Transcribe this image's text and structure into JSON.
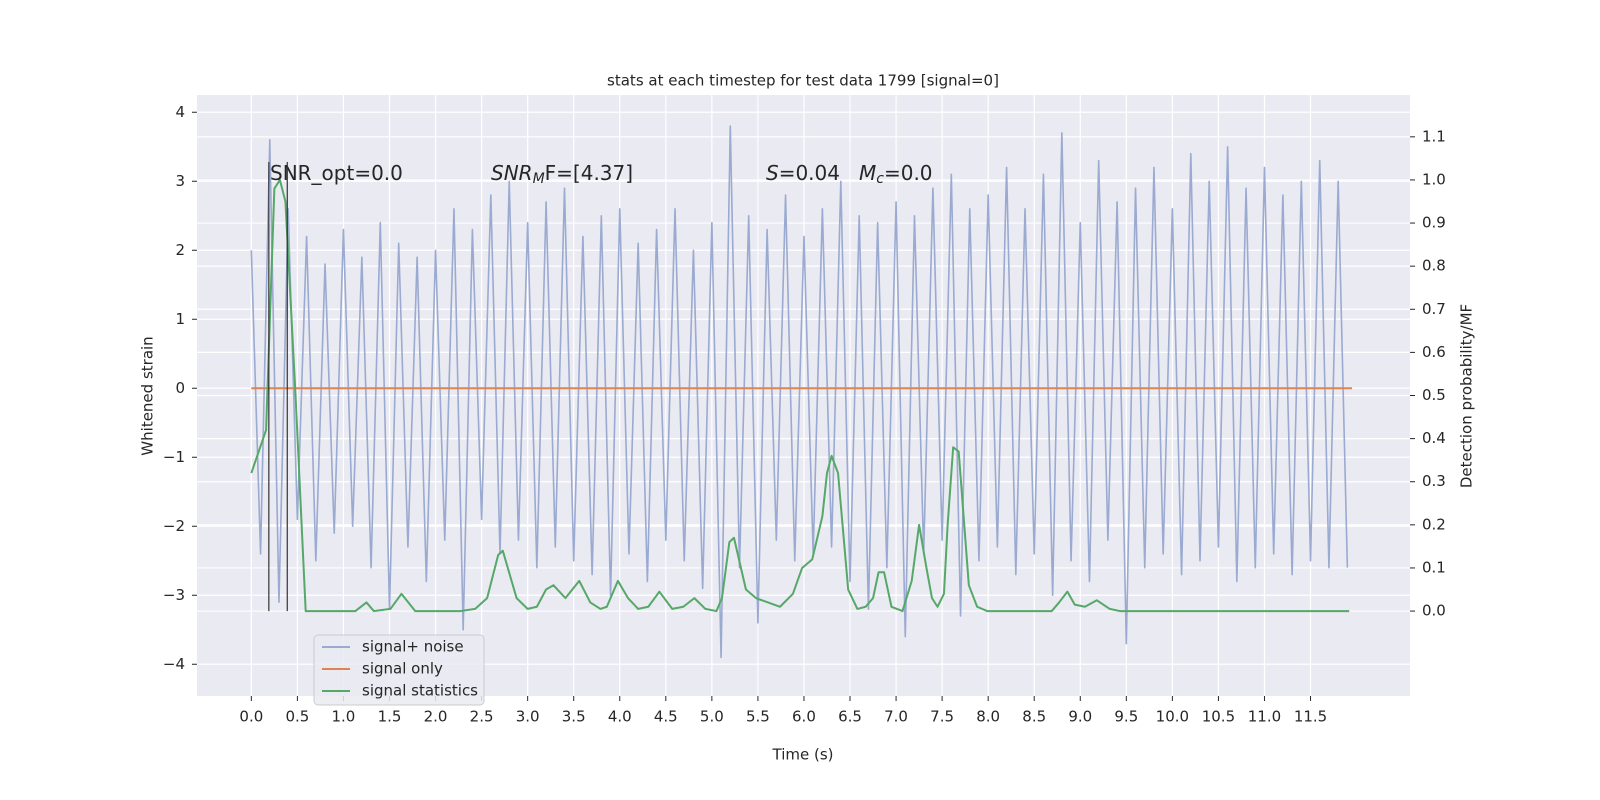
{
  "chart_data": {
    "type": "line",
    "title": "stats at each timestep for test data 1799 [signal=0]",
    "xlabel": "Time (s)",
    "ylabel": "Whitened strain",
    "y2label": "Detection probability/MF",
    "xlim": [
      -0.59,
      12.58
    ],
    "ylim": [
      -4.46,
      4.25
    ],
    "y2lim": [
      -0.197,
      1.197
    ],
    "xticks": [
      {
        "value": 0,
        "label": "0.0"
      },
      0.5,
      {
        "value": 1,
        "label": "1.0"
      },
      1.5,
      {
        "value": 2,
        "label": "2.0"
      },
      2.5,
      {
        "value": 3,
        "label": "3.0"
      },
      3.5,
      {
        "value": 4,
        "label": "4.0"
      },
      4.5,
      {
        "value": 5,
        "label": "5.0"
      },
      5.5,
      {
        "value": 6,
        "label": "6.0"
      },
      6.5,
      {
        "value": 7,
        "label": "7.0"
      },
      7.5,
      {
        "value": 8,
        "label": "8.0"
      },
      8.5,
      {
        "value": 9,
        "label": "9.0"
      },
      9.5,
      {
        "value": 10,
        "label": "10.0"
      },
      10.5,
      {
        "value": 11,
        "label": "11.0"
      },
      11.5
    ],
    "yticks": [
      {
        "value": -4,
        "label": "−4"
      },
      {
        "value": -3,
        "label": "−3"
      },
      {
        "value": -2,
        "label": "−2"
      },
      {
        "value": -1,
        "label": "−1"
      },
      0,
      1,
      2,
      3,
      4
    ],
    "y2ticks": [
      {
        "value": 0,
        "label": "0.0"
      },
      0.1,
      0.2,
      0.3,
      0.4,
      0.5,
      0.6,
      0.7,
      0.8,
      0.9,
      {
        "value": 1,
        "label": "1.0"
      },
      1.1
    ],
    "grid": true,
    "legend": "lower left",
    "vlines": [
      0.19,
      0.39
    ],
    "annotations": [
      {
        "parts": [
          "SNR_opt=0.0"
        ]
      },
      {
        "parts": [
          "SNR",
          "M",
          "F=[4.37]"
        ]
      },
      {
        "parts": [
          "S",
          "=0.04"
        ]
      },
      {
        "parts": [
          "M",
          "c",
          "=0.0"
        ]
      }
    ],
    "series": [
      {
        "name": "signal+ noise",
        "color": "#9aaad0",
        "x": [
          0,
          0.1,
          0.2,
          0.3,
          0.4,
          0.5,
          0.6,
          0.7,
          0.8,
          0.9,
          1,
          1.1,
          1.2,
          1.3,
          1.4,
          1.5,
          1.6,
          1.7,
          1.8,
          1.9,
          2,
          2.1,
          2.2,
          2.3,
          2.4,
          2.5,
          2.6,
          2.7,
          2.8,
          2.9,
          3,
          3.1,
          3.2,
          3.3,
          3.4,
          3.5,
          3.6,
          3.7,
          3.8,
          3.9,
          4,
          4.1,
          4.2,
          4.3,
          4.4,
          4.5,
          4.6,
          4.7,
          4.8,
          4.9,
          5,
          5.1,
          5.2,
          5.3,
          5.4,
          5.5,
          5.6,
          5.7,
          5.8,
          5.9,
          6,
          6.1,
          6.2,
          6.3,
          6.4,
          6.5,
          6.6,
          6.7,
          6.8,
          6.9,
          7,
          7.1,
          7.2,
          7.3,
          7.4,
          7.5,
          7.6,
          7.7,
          7.8,
          7.9,
          8,
          8.1,
          8.2,
          8.3,
          8.4,
          8.5,
          8.6,
          8.7,
          8.8,
          8.9,
          9,
          9.1,
          9.2,
          9.3,
          9.4,
          9.5,
          9.6,
          9.7,
          9.8,
          9.9,
          10,
          10.1,
          10.2,
          10.3,
          10.4,
          10.5,
          10.6,
          10.7,
          10.8,
          10.9,
          11,
          11.1,
          11.2,
          11.3,
          11.4,
          11.5,
          11.6,
          11.7,
          11.8,
          11.9
        ],
        "values": [
          2.0,
          -2.4,
          3.6,
          -3.1,
          2.6,
          -1.9,
          2.2,
          -2.5,
          1.8,
          -2.1,
          2.3,
          -2.0,
          1.9,
          -2.6,
          2.4,
          -3.2,
          2.1,
          -2.3,
          1.9,
          -2.8,
          2.0,
          -2.2,
          2.6,
          -3.5,
          2.3,
          -1.9,
          2.8,
          -2.4,
          3.0,
          -2.2,
          2.4,
          -2.6,
          2.7,
          -2.3,
          2.9,
          -2.5,
          2.2,
          -2.7,
          2.5,
          -3.0,
          2.6,
          -2.4,
          2.1,
          -2.8,
          2.3,
          -2.2,
          2.6,
          -2.5,
          2.0,
          -2.9,
          2.4,
          -3.9,
          3.8,
          -2.6,
          2.5,
          -3.4,
          2.3,
          -2.2,
          2.8,
          -2.5,
          2.2,
          -2.4,
          2.6,
          -2.3,
          3.0,
          -2.8,
          2.5,
          -3.2,
          2.4,
          -2.6,
          2.7,
          -3.6,
          2.5,
          -2.4,
          2.9,
          -2.2,
          3.1,
          -3.3,
          2.6,
          -2.5,
          2.8,
          -2.3,
          3.2,
          -2.7,
          2.6,
          -2.4,
          3.1,
          -3.0,
          3.7,
          -2.5,
          2.4,
          -2.8,
          3.3,
          -2.2,
          2.7,
          -3.7,
          2.9,
          -2.6,
          3.2,
          -2.4,
          2.6,
          -2.7,
          3.4,
          -2.5,
          3.0,
          -2.3,
          3.5,
          -2.8,
          2.9,
          -2.6,
          3.2,
          -2.4,
          2.8,
          -2.7,
          3.0,
          -2.5,
          3.3,
          -2.6,
          3.0,
          -2.6
        ]
      },
      {
        "name": "signal only",
        "color": "#dd8452",
        "x": [
          0,
          11.95
        ],
        "values": [
          0,
          0
        ]
      },
      {
        "name": "signal statistics",
        "color": "#55a868",
        "axis": "y2",
        "x": [
          0,
          0.16,
          0.25,
          0.31,
          0.37,
          0.48,
          0.59,
          1.13,
          1.25,
          1.33,
          1.51,
          1.63,
          1.78,
          2.27,
          2.43,
          2.56,
          2.68,
          2.73,
          2.88,
          3.0,
          3.1,
          3.2,
          3.28,
          3.41,
          3.56,
          3.68,
          3.79,
          3.86,
          3.98,
          4.09,
          4.2,
          4.31,
          4.43,
          4.57,
          4.69,
          4.81,
          4.93,
          5.05,
          5.11,
          5.19,
          5.24,
          5.37,
          5.48,
          5.61,
          5.74,
          5.88,
          5.98,
          6.09,
          6.2,
          6.25,
          6.3,
          6.37,
          6.48,
          6.58,
          6.67,
          6.75,
          6.81,
          6.87,
          6.95,
          7.07,
          7.17,
          7.25,
          7.33,
          7.39,
          7.45,
          7.52,
          7.56,
          7.62,
          7.68,
          7.79,
          7.88,
          7.99,
          8.69,
          8.77,
          8.86,
          8.94,
          9.05,
          9.18,
          9.32,
          9.43,
          11.92
        ],
        "values": [
          0.32,
          0.42,
          0.98,
          1.0,
          0.95,
          0.5,
          0.0,
          0.0,
          0.02,
          0.0,
          0.005,
          0.04,
          0.0,
          0.0,
          0.005,
          0.03,
          0.13,
          0.14,
          0.03,
          0.005,
          0.01,
          0.05,
          0.06,
          0.03,
          0.07,
          0.02,
          0.005,
          0.01,
          0.07,
          0.03,
          0.005,
          0.01,
          0.045,
          0.005,
          0.01,
          0.03,
          0.005,
          0.0,
          0.03,
          0.16,
          0.17,
          0.05,
          0.03,
          0.02,
          0.01,
          0.04,
          0.1,
          0.12,
          0.22,
          0.32,
          0.36,
          0.32,
          0.05,
          0.005,
          0.01,
          0.03,
          0.09,
          0.09,
          0.01,
          0.0,
          0.07,
          0.2,
          0.1,
          0.03,
          0.01,
          0.04,
          0.2,
          0.38,
          0.37,
          0.06,
          0.01,
          0.0,
          0.0,
          0.02,
          0.045,
          0.015,
          0.01,
          0.025,
          0.005,
          0.0,
          0.0
        ]
      }
    ]
  }
}
